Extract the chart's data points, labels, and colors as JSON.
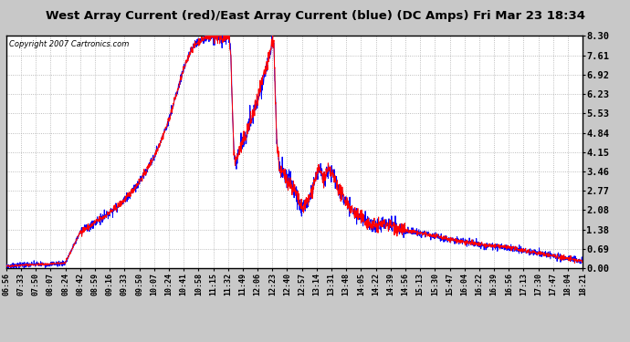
{
  "title": "West Array Current (red)/East Array Current (blue) (DC Amps) Fri Mar 23 18:34",
  "copyright": "Copyright 2007 Cartronics.com",
  "bg_color": "#ffffff",
  "plot_bg_color": "#ffffff",
  "yticks": [
    0.0,
    0.69,
    1.38,
    2.08,
    2.77,
    3.46,
    4.15,
    4.84,
    5.53,
    6.23,
    6.92,
    7.61,
    8.3
  ],
  "ylim": [
    0.0,
    8.3
  ],
  "x_labels": [
    "06:56",
    "07:33",
    "07:50",
    "08:07",
    "08:24",
    "08:42",
    "08:59",
    "09:16",
    "09:33",
    "09:50",
    "10:07",
    "10:24",
    "10:41",
    "10:58",
    "11:15",
    "11:32",
    "11:49",
    "12:06",
    "12:23",
    "12:40",
    "12:57",
    "13:14",
    "13:31",
    "13:48",
    "14:05",
    "14:22",
    "14:39",
    "14:56",
    "15:13",
    "15:30",
    "15:47",
    "16:04",
    "16:22",
    "16:39",
    "16:56",
    "17:13",
    "17:30",
    "17:47",
    "18:04",
    "18:21"
  ],
  "red_color": "#ff0000",
  "blue_color": "#0000ff",
  "grid_color": "#aaaaaa",
  "title_color": "#000000",
  "outer_bg": "#c8c8c8"
}
